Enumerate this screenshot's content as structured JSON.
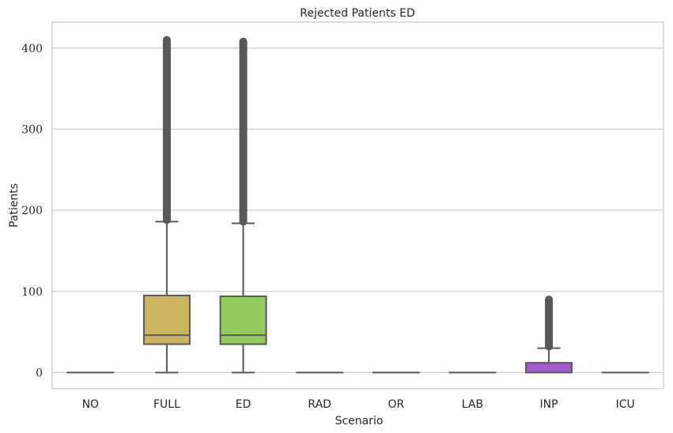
{
  "chart_data": {
    "type": "box",
    "title": "Rejected Patients ED",
    "xlabel": "Scenario",
    "ylabel": "Patients",
    "ylim": [
      -20,
      432
    ],
    "yticks": [
      0,
      100,
      200,
      300,
      400
    ],
    "grid": true,
    "categories": [
      "NO",
      "FULL",
      "ED",
      "RAD",
      "OR",
      "LAB",
      "INP",
      "ICU"
    ],
    "boxes": [
      {
        "category": "NO",
        "color": "#4c72b0",
        "whislo": 0,
        "q1": 0,
        "med": 0,
        "q3": 0,
        "whishi": 0,
        "fliers_from": null,
        "fliers_to": null
      },
      {
        "category": "FULL",
        "color": "#ccb55e",
        "whislo": 0,
        "q1": 35,
        "med": 46,
        "q3": 95,
        "whishi": 186,
        "fliers_from": 188,
        "fliers_to": 410
      },
      {
        "category": "ED",
        "color": "#92cc5e",
        "whislo": 0,
        "q1": 35,
        "med": 46,
        "q3": 94,
        "whishi": 184,
        "fliers_from": 186,
        "fliers_to": 408
      },
      {
        "category": "RAD",
        "color": "#4c72b0",
        "whislo": 0,
        "q1": 0,
        "med": 0,
        "q3": 0,
        "whishi": 0,
        "fliers_from": null,
        "fliers_to": null
      },
      {
        "category": "OR",
        "color": "#4c72b0",
        "whislo": 0,
        "q1": 0,
        "med": 0,
        "q3": 0,
        "whishi": 0,
        "fliers_from": null,
        "fliers_to": null
      },
      {
        "category": "LAB",
        "color": "#4c72b0",
        "whislo": 0,
        "q1": 0,
        "med": 0,
        "q3": 0,
        "whishi": 0,
        "fliers_from": null,
        "fliers_to": null
      },
      {
        "category": "INP",
        "color": "#9f5ecc",
        "whislo": 0,
        "q1": 0,
        "med": 0,
        "q3": 12,
        "whishi": 30,
        "fliers_from": 32,
        "fliers_to": 90
      },
      {
        "category": "ICU",
        "color": "#4c72b0",
        "whislo": 0,
        "q1": 0,
        "med": 0,
        "q3": 0,
        "whishi": 0,
        "fliers_from": null,
        "fliers_to": null
      }
    ]
  }
}
